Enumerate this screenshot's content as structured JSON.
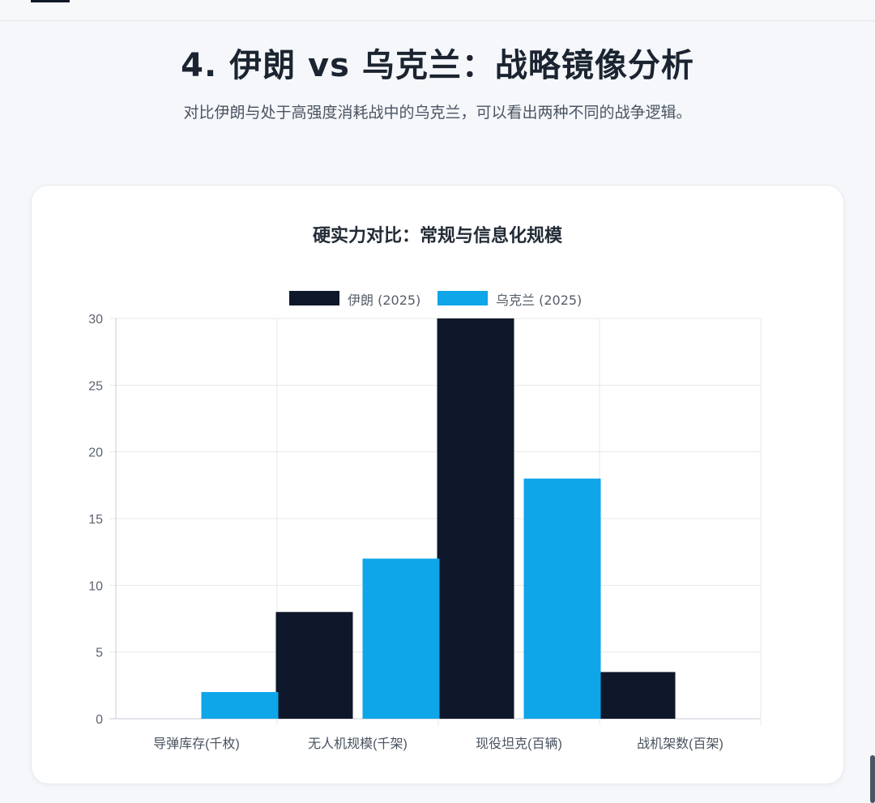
{
  "section": {
    "title": "4. 伊朗 vs 乌克兰：战略镜像分析",
    "subtitle": "对比伊朗与处于高强度消耗战中的乌克兰，可以看出两种不同的战争逻辑。"
  },
  "chart_data": {
    "type": "bar",
    "title": "硬实力对比：常规与信息化规模",
    "categories": [
      "导弹库存(千枚)",
      "无人机规模(千架)",
      "现役坦克(百辆)",
      "战机架数(百架)"
    ],
    "series": [
      {
        "name": "伊朗 (2025)",
        "color": "#0f172a",
        "values": [
          0,
          8,
          30,
          3.5
        ]
      },
      {
        "name": "乌克兰 (2025)",
        "color": "#0ea5e9",
        "values": [
          2,
          12,
          18,
          0
        ]
      }
    ],
    "ylim": [
      0,
      30
    ],
    "yticks": [
      0,
      5,
      10,
      15,
      20,
      25,
      30
    ],
    "xlabel": "",
    "ylabel": "",
    "grid": true,
    "legend": "top-center"
  }
}
